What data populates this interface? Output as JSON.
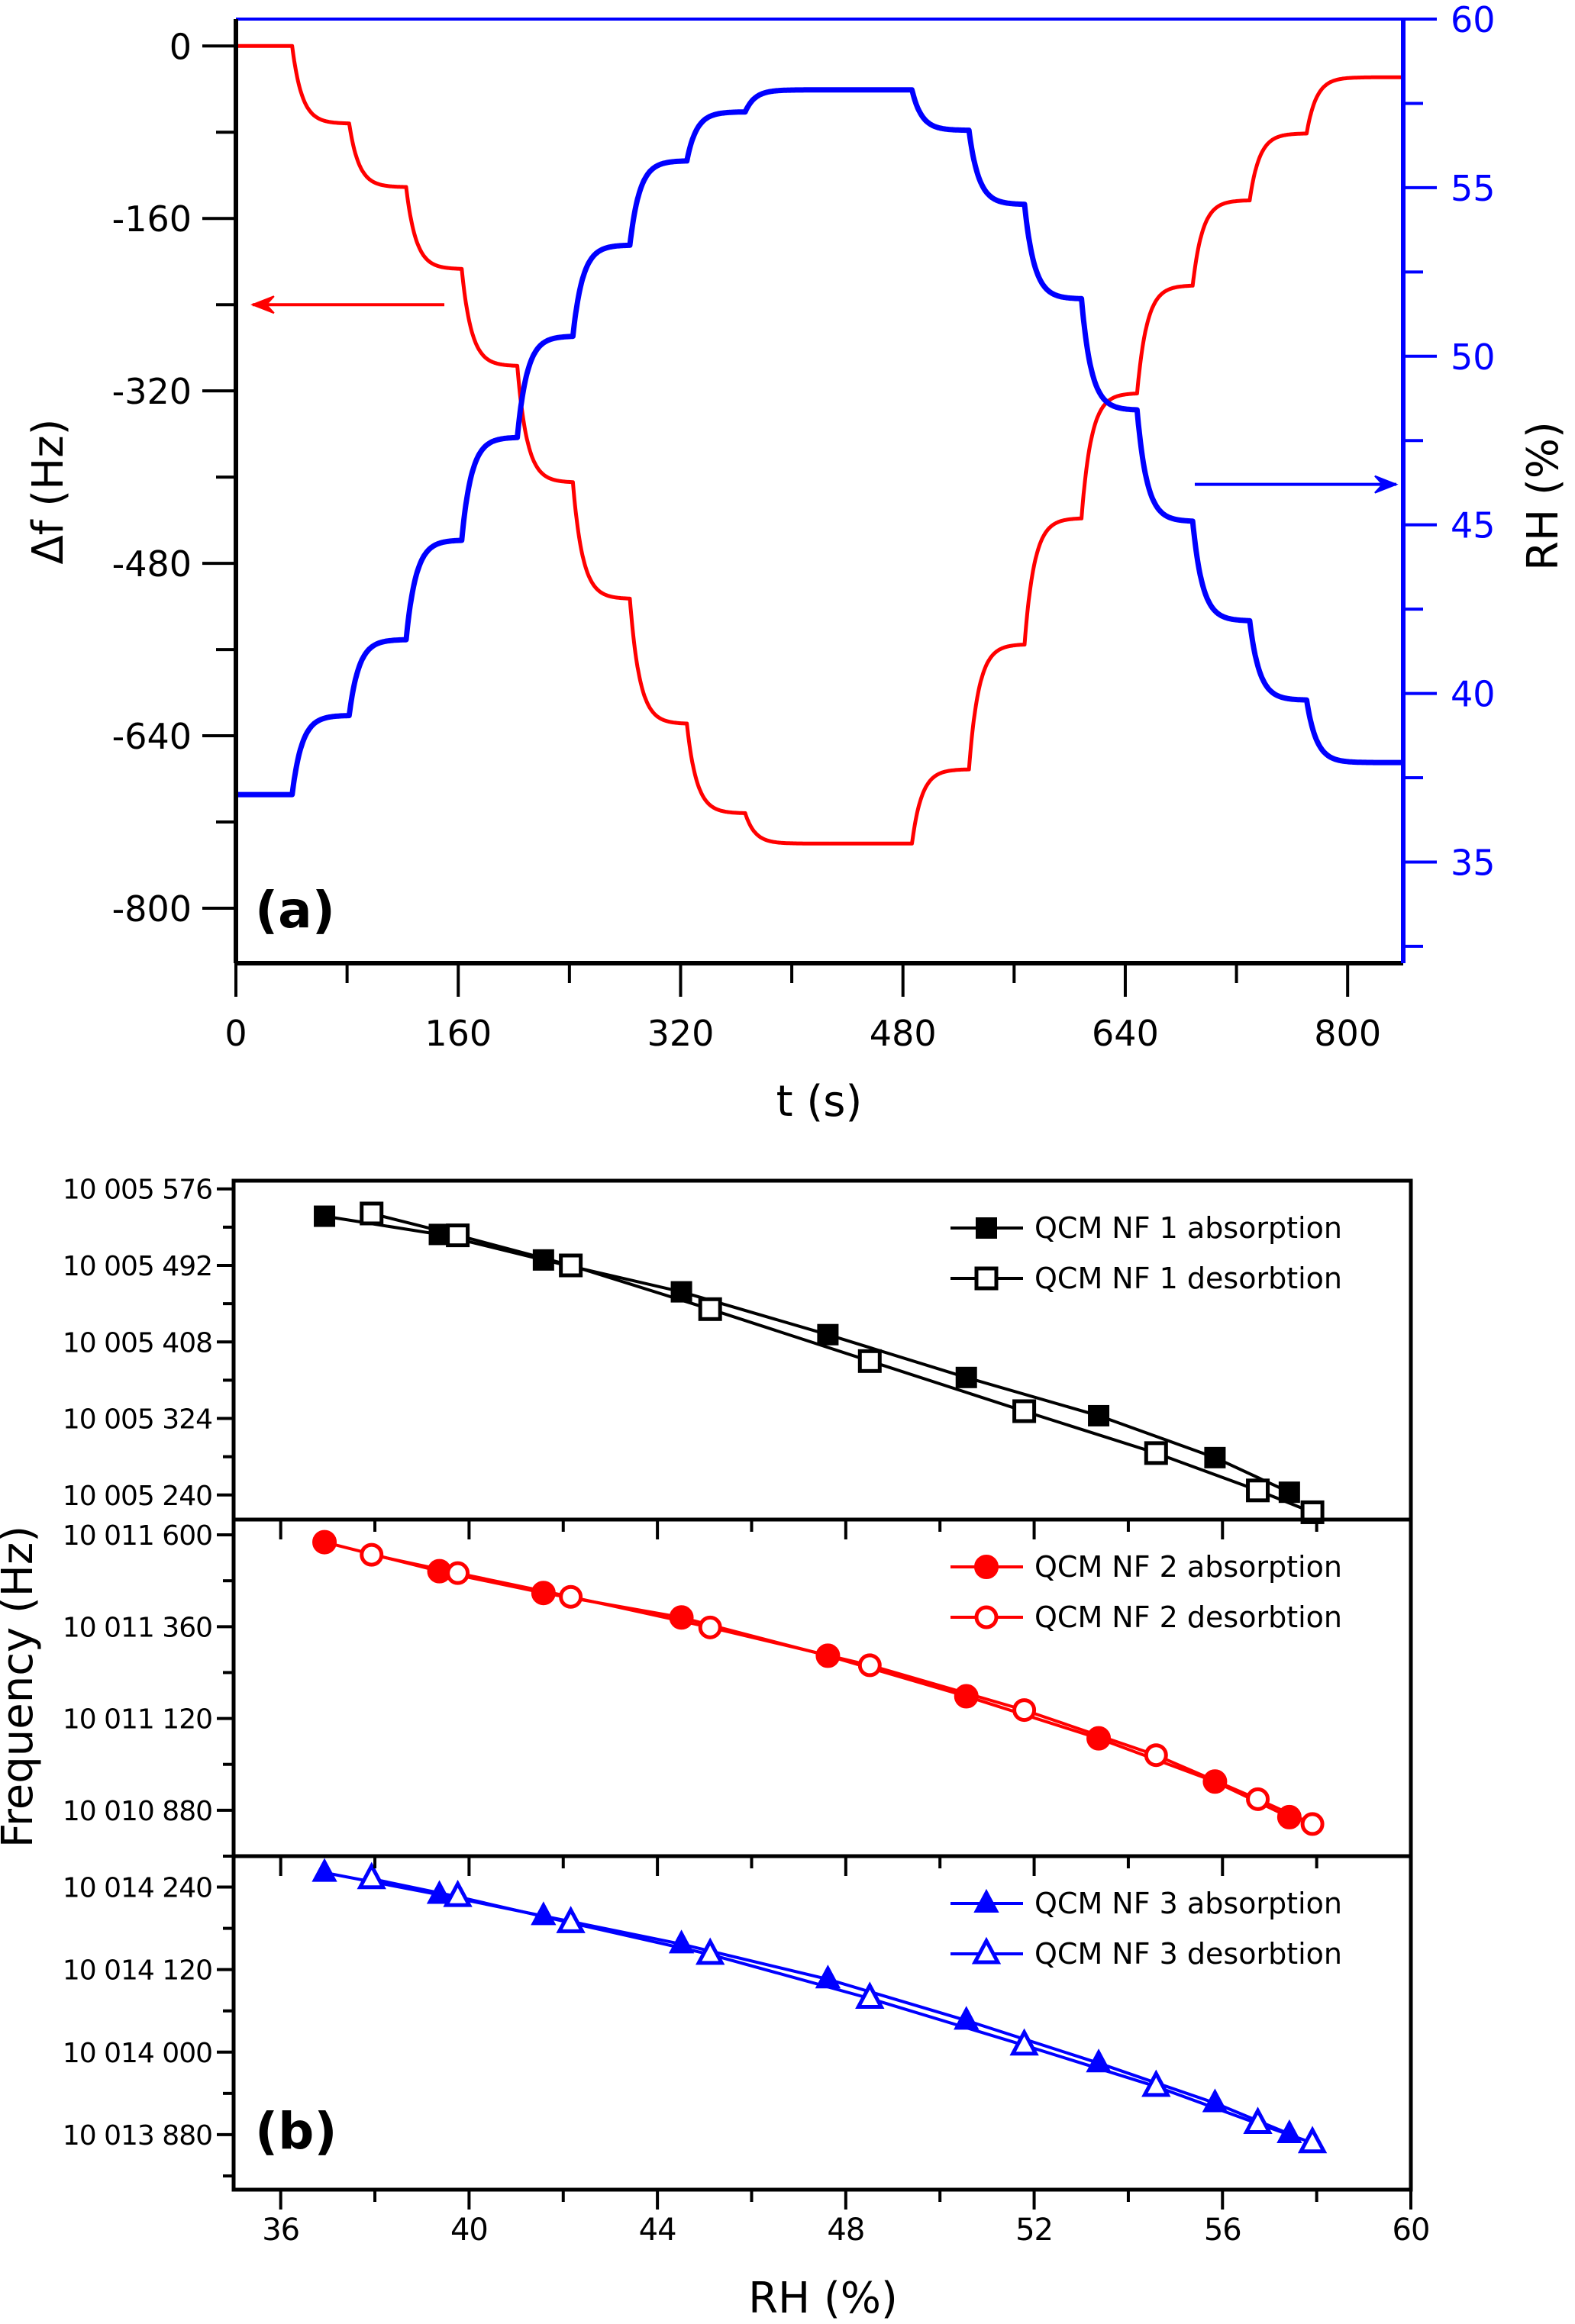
{
  "figure": {
    "panel_a_label": "(a)",
    "panel_b_label": "(b)"
  },
  "colors": {
    "red": "#ff0000",
    "blue": "#0000ff",
    "black": "#000000"
  },
  "chart_data": [
    {
      "type": "line",
      "panel": "(a)",
      "title": "",
      "xlabel": "t (s)",
      "ylabel": "Δf (Hz)",
      "ylabel_right": "RH (%)",
      "xlim": [
        0,
        840
      ],
      "ylim": [
        -851,
        25
      ],
      "ylim_right": [
        32,
        60
      ],
      "xticks": [
        0,
        160,
        320,
        480,
        640,
        800
      ],
      "xtick_labels": [
        "0",
        "160",
        "320",
        "480",
        "640",
        "800"
      ],
      "xminor_step": 80,
      "yticks": [
        0,
        -160,
        -320,
        -480,
        -640,
        -800
      ],
      "ytick_labels": [
        "0",
        "-160",
        "-320",
        "-480",
        "-640",
        "-800"
      ],
      "yminor_step": 80,
      "yticks_right": [
        35,
        40,
        45,
        50,
        55,
        60
      ],
      "ytick_labels_right": [
        "35",
        "40",
        "45",
        "50",
        "55",
        "60"
      ],
      "yminor_step_right": 2.5,
      "grid": false,
      "annotations": [
        {
          "type": "arrow",
          "direction": "left",
          "series": "Δf (Hz)",
          "color": "#ff0000",
          "y_axis": "left",
          "at_y": -240,
          "from_t": 150,
          "to_t": 12
        },
        {
          "type": "arrow",
          "direction": "right",
          "series": "RH (%)",
          "color": "#0000ff",
          "y_axis": "right",
          "at_y": 46.2,
          "from_t": 690,
          "to_t": 835
        }
      ],
      "series": [
        {
          "name": "Δf (Hz)",
          "axis": "left",
          "color": "#ff0000",
          "steps": {
            "start_value": 0,
            "step_times": [
              41,
              82,
              123,
              163,
              203,
              243,
              284,
              325,
              367,
              487,
              528,
              568,
              609,
              649,
              689,
              730,
              771
            ],
            "plateau_values": [
              -72,
              -131,
              -207,
              -297,
              -405,
              -513,
              -629,
              -712,
              -740,
              -671,
              -555,
              -438,
              -322,
              -222,
              -143,
              -81,
              -29
            ],
            "end_value": -30
          }
        },
        {
          "name": "RH (%)",
          "axis": "right",
          "color": "#0000ff",
          "steps": {
            "start_value": 37.0,
            "step_times": [
              41,
              82,
              123,
              163,
              203,
              243,
              284,
              325,
              367,
              487,
              528,
              568,
              609,
              649,
              689,
              730,
              771
            ],
            "plateau_values": [
              39.35,
              41.6,
              44.55,
              47.6,
              50.6,
              53.3,
              55.8,
              57.25,
              57.9,
              56.7,
              54.5,
              51.7,
              48.4,
              45.1,
              42.15,
              39.8,
              37.95
            ],
            "end_value": 37.95
          }
        }
      ]
    },
    {
      "type": "line",
      "panel": "(b)",
      "xlabel": "RH (%)",
      "ylabel": "Frequency (Hz)",
      "xlim": [
        35,
        60
      ],
      "xticks": [
        36,
        40,
        44,
        48,
        52,
        56,
        60
      ],
      "xtick_labels": [
        "36",
        "40",
        "44",
        "48",
        "52",
        "56",
        "60"
      ],
      "xminor_step": 2,
      "grid": false,
      "legend_position": "top-right",
      "subplots": [
        {
          "name": "QCM NF 1",
          "color": "#000000",
          "ylim": [
            10005213,
            10005585
          ],
          "yticks": [
            10005240,
            10005324,
            10005408,
            10005492,
            10005576
          ],
          "ytick_labels": [
            "10 005 240",
            "10 005 324",
            "10 005 408",
            "10 005 492",
            "10 005 576"
          ],
          "series": [
            {
              "name": "QCM NF 1 absorption",
              "marker": "filled-square",
              "x": [
                36.93,
                39.37,
                41.58,
                44.51,
                47.62,
                50.56,
                53.37,
                55.84,
                57.42
              ],
              "y": [
                10005546,
                10005526,
                10005498,
                10005463,
                10005416,
                10005369,
                10005327,
                10005281,
                10005243
              ]
            },
            {
              "name": "QCM NF 1 desorbtion",
              "marker": "open-square",
              "x": [
                37.93,
                39.76,
                42.16,
                45.12,
                48.51,
                51.79,
                54.59,
                56.75,
                57.91
              ],
              "y": [
                10005549,
                10005525,
                10005492,
                10005444,
                10005387,
                10005332,
                10005286,
                10005245,
                10005221
              ]
            }
          ]
        },
        {
          "name": "QCM NF 2",
          "color": "#ff0000",
          "ylim": [
            10010760,
            10011640
          ],
          "yticks": [
            10010880,
            10011120,
            10011360,
            10011600
          ],
          "ytick_labels": [
            "10 010 880",
            "10 011 120",
            "10 011 360",
            "10 011 600"
          ],
          "series": [
            {
              "name": "QCM NF 2 absorption",
              "marker": "filled-circle",
              "x": [
                36.93,
                39.37,
                41.58,
                44.51,
                47.62,
                50.56,
                53.37,
                55.84,
                57.42
              ],
              "y": [
                10011581,
                10011505,
                10011448,
                10011384,
                10011284,
                10011178,
                10011068,
                10010955,
                10010862
              ]
            },
            {
              "name": "QCM NF 2 desorbtion",
              "marker": "open-circle",
              "x": [
                37.93,
                39.76,
                42.16,
                45.12,
                48.51,
                51.79,
                54.59,
                56.75,
                57.91
              ],
              "y": [
                10011548,
                10011500,
                10011438,
                10011358,
                10011259,
                10011142,
                10011024,
                10010909,
                10010844
              ]
            }
          ]
        },
        {
          "name": "QCM NF 3",
          "color": "#0000ff",
          "ylim": [
            10013800,
            10014285
          ],
          "yticks": [
            10013880,
            10014000,
            10014120,
            10014240
          ],
          "ytick_labels": [
            "10 013 880",
            "10 014 000",
            "10 014 120",
            "10 014 240"
          ],
          "series": [
            {
              "name": "QCM NF 3 absorption",
              "marker": "filled-triangle",
              "x": [
                36.93,
                39.37,
                41.58,
                44.51,
                47.62,
                50.56,
                53.37,
                55.84,
                57.42
              ],
              "y": [
                10014261,
                10014229,
                10014198,
                10014157,
                10014106,
                10014046,
                10013984,
                10013926,
                10013881
              ]
            },
            {
              "name": "QCM NF 3 desorbtion",
              "marker": "open-triangle",
              "x": [
                37.93,
                39.76,
                42.16,
                45.12,
                48.51,
                51.79,
                54.59,
                56.75,
                57.91
              ],
              "y": [
                10014252,
                10014226,
                10014188,
                10014142,
                10014078,
                10014010,
                10013950,
                10013896,
                10013868
              ]
            }
          ]
        }
      ]
    }
  ]
}
